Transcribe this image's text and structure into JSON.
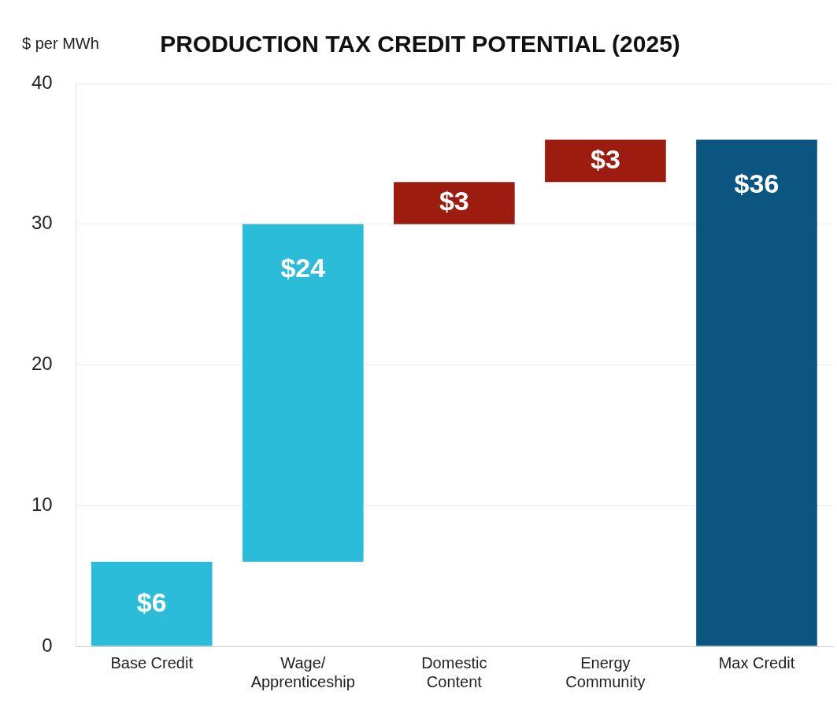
{
  "chart_data": {
    "type": "bar",
    "title": "PRODUCTION TAX CREDIT POTENTIAL (2025)",
    "ylabel": "$ per MWh",
    "categories": [
      "Base Credit",
      "Wage/\nApprenticeship",
      "Domestic\nContent",
      "Energy\nCommunity",
      "Max Credit"
    ],
    "values": [
      6,
      24,
      3,
      3,
      36
    ],
    "base": [
      0,
      6,
      30,
      33,
      0
    ],
    "colors": [
      "#2bbcd9",
      "#2bbcd9",
      "#9c1c0f",
      "#9c1c0f",
      "#0b5680"
    ],
    "value_labels": [
      "$6",
      "$24",
      "$3",
      "$3",
      "$36"
    ],
    "ylim": [
      0,
      40
    ],
    "yticks": [
      0,
      10,
      20,
      30,
      40
    ],
    "grid": "y",
    "legend": false
  }
}
